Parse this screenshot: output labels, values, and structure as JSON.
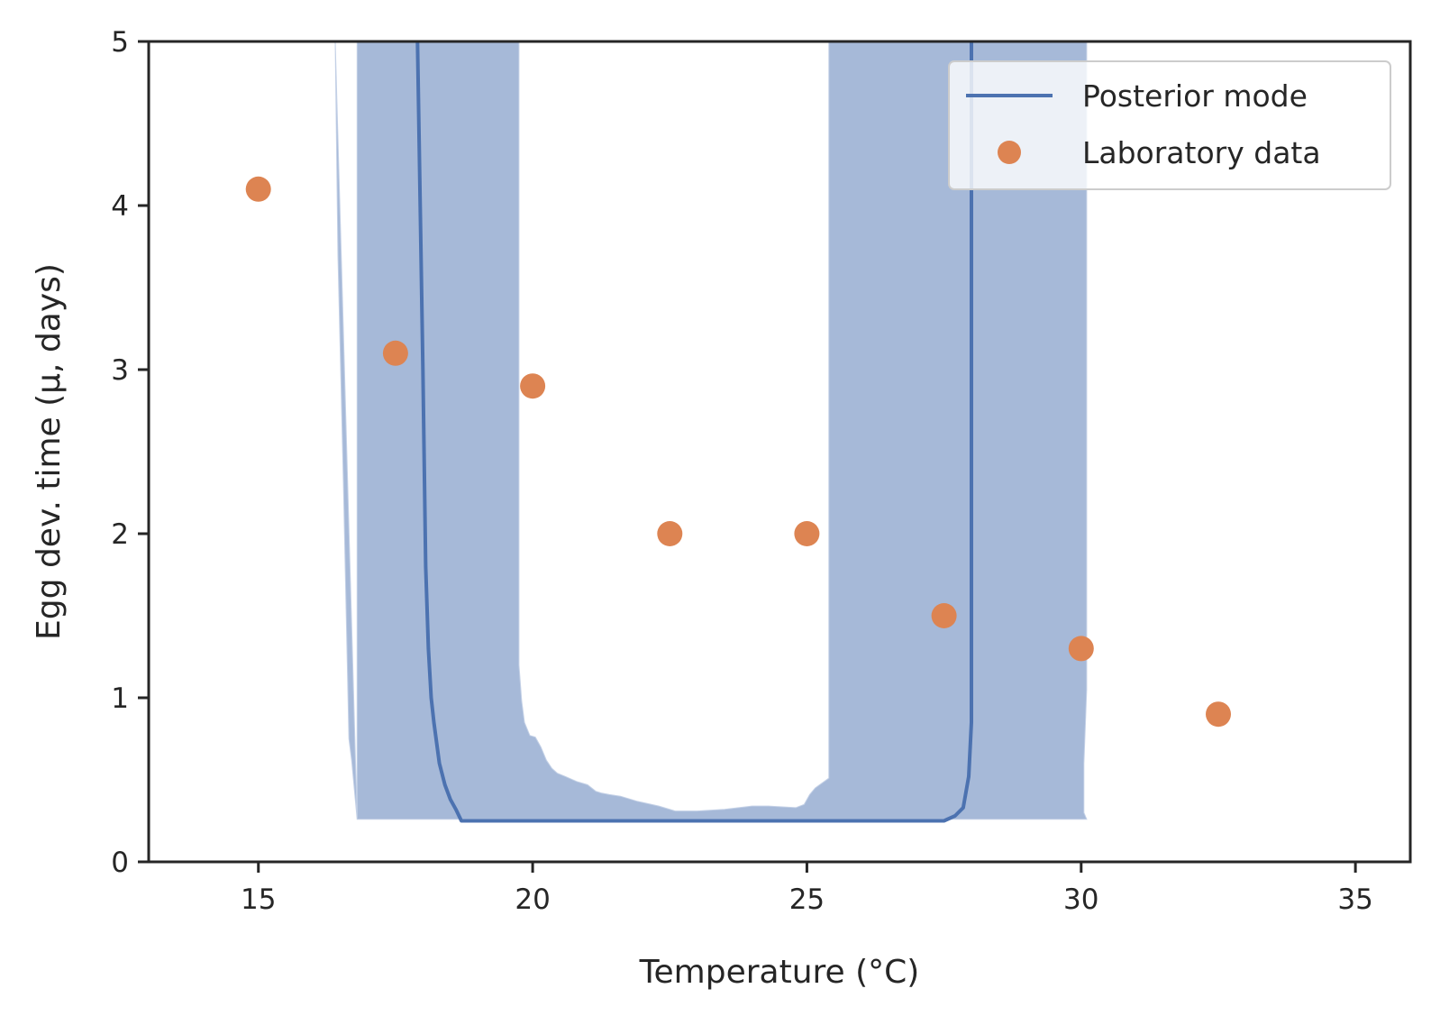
{
  "chart_data": {
    "type": "line",
    "title": "",
    "xlabel": "Temperature (°C)",
    "ylabel": "Egg dev. time (μ, days)",
    "xlim": [
      13,
      36
    ],
    "ylim": [
      0,
      5
    ],
    "xticks": [
      15,
      20,
      25,
      30,
      35
    ],
    "yticks": [
      0,
      1,
      2,
      3,
      4,
      5
    ],
    "grid": false,
    "legend_position": "top-right",
    "colors": {
      "line": "#4c72b0",
      "band": "#a6b9d8",
      "points": "#dd8452",
      "axes": "#262626"
    },
    "band_lower": {
      "x": [
        16.8,
        19.0,
        20.0,
        30.1
      ],
      "y": [
        0.26,
        0.26,
        0.26,
        0.26
      ]
    },
    "band_upper": {
      "x": [
        16.4,
        16.45,
        16.55,
        16.65,
        16.7,
        16.8,
        16.8,
        19.75,
        19.75,
        19.8,
        19.85,
        19.95,
        20.05,
        20.15,
        20.25,
        20.35,
        20.45,
        20.6,
        20.8,
        21.0,
        21.15,
        21.25,
        21.4,
        21.6,
        21.9,
        22.3,
        22.6,
        23.0,
        23.5,
        24.0,
        24.3,
        24.8,
        24.95,
        25.05,
        25.15,
        25.4,
        25.4,
        30.1,
        30.1,
        30.05,
        30.05,
        30.1
      ],
      "y": [
        5.0,
        3.7,
        2.3,
        0.75,
        0.62,
        0.26,
        5.0,
        5.0,
        1.2,
        0.98,
        0.85,
        0.77,
        0.76,
        0.7,
        0.62,
        0.57,
        0.54,
        0.52,
        0.49,
        0.47,
        0.43,
        0.42,
        0.41,
        0.4,
        0.37,
        0.34,
        0.31,
        0.31,
        0.32,
        0.34,
        0.34,
        0.33,
        0.35,
        0.41,
        0.45,
        0.51,
        5.0,
        5.0,
        1.05,
        0.6,
        0.3,
        0.26
      ]
    },
    "series": [
      {
        "name": "Posterior mode",
        "kind": "line",
        "x": [
          17.9,
          18.0,
          18.05,
          18.1,
          18.15,
          18.2,
          18.3,
          18.4,
          18.5,
          18.6,
          18.7,
          21.0,
          25.0,
          27.5,
          27.7,
          27.85,
          27.95,
          28.0,
          28.0
        ],
        "y": [
          5.0,
          3.0,
          1.8,
          1.3,
          1.0,
          0.85,
          0.6,
          0.47,
          0.38,
          0.32,
          0.25,
          0.25,
          0.25,
          0.25,
          0.28,
          0.33,
          0.52,
          0.85,
          5.0
        ]
      },
      {
        "name": "Laboratory data",
        "kind": "scatter",
        "x": [
          15,
          17.5,
          20,
          22.5,
          25,
          27.5,
          30,
          32.5
        ],
        "y": [
          4.1,
          3.1,
          2.9,
          2.0,
          2.0,
          1.5,
          1.3,
          0.9
        ]
      }
    ]
  }
}
